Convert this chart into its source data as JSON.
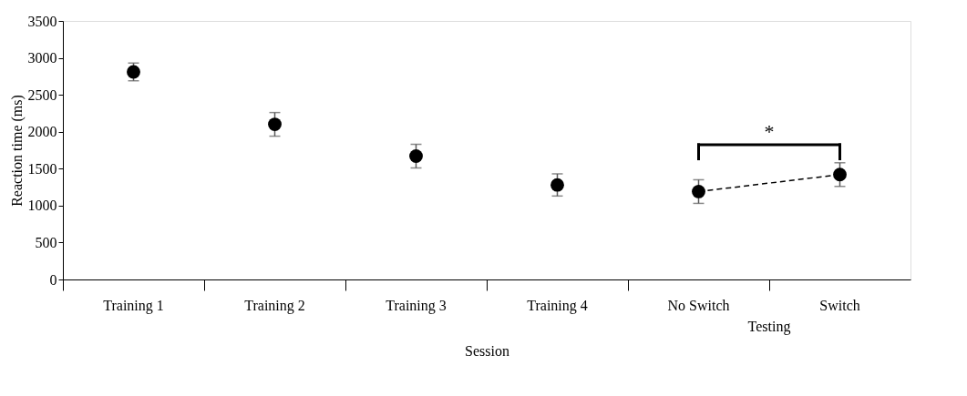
{
  "chart_data": {
    "type": "scatter",
    "ylabel": "Reaction time (ms)",
    "xlabel": "Session",
    "categories": [
      "Training 1",
      "Training 2",
      "Training 3",
      "Training 4",
      "No Switch",
      "Switch"
    ],
    "series": [
      {
        "color": "#000000",
        "marker": "circle",
        "values": [
          2810,
          2100,
          1670,
          1280,
          1190,
          1420
        ],
        "errors": [
          120,
          160,
          160,
          150,
          160,
          160
        ]
      },
      {
        "type": "line",
        "color": "#000000",
        "marker": "none",
        "line_style": "dashed",
        "x": [
          "No Switch",
          "Switch"
        ],
        "values": [
          1190,
          1420
        ]
      }
    ],
    "ylim": [
      0,
      3500
    ],
    "yticks": [
      0,
      500,
      1000,
      1500,
      2000,
      2500,
      3000,
      3500
    ],
    "annotations": [
      "*",
      "Testing"
    ],
    "grid": false
  }
}
